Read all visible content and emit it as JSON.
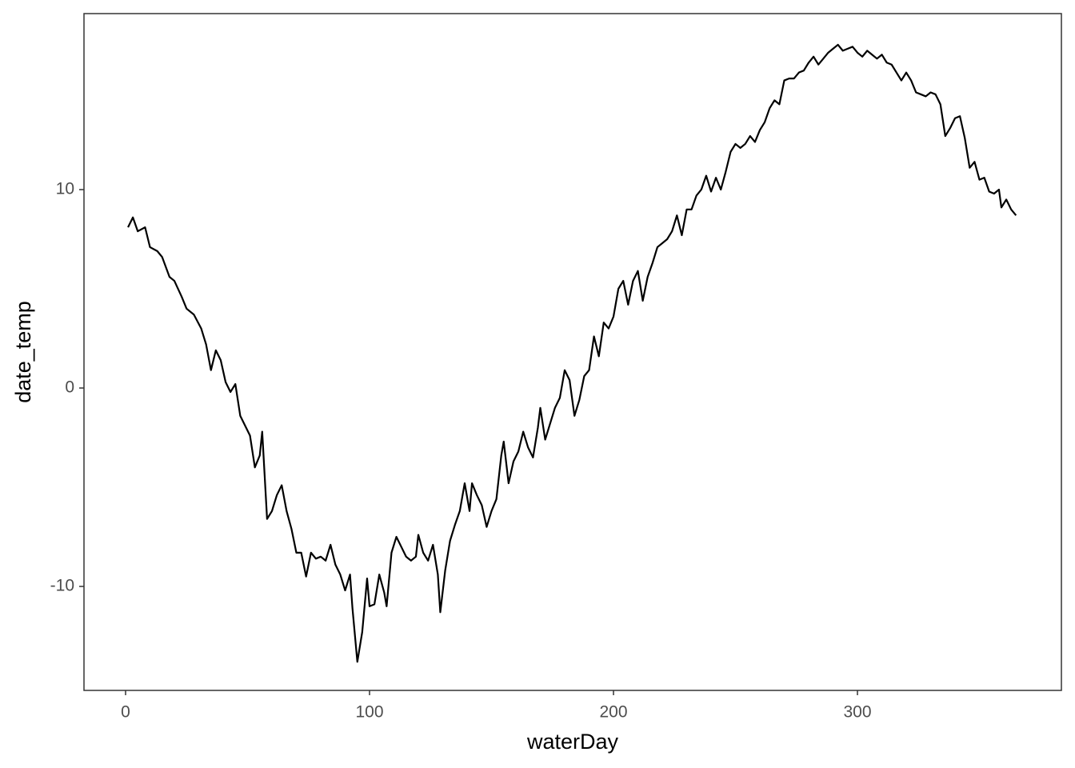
{
  "chart_data": {
    "type": "line",
    "x_label": "waterDay",
    "y_label": "date_temp",
    "x": [
      1,
      3,
      5,
      8,
      10,
      13,
      15,
      18,
      20,
      23,
      25,
      28,
      31,
      33,
      35,
      37,
      39,
      41,
      43,
      45,
      47,
      49,
      51,
      53,
      55,
      56,
      58,
      60,
      62,
      64,
      66,
      68,
      70,
      72,
      74,
      76,
      78,
      80,
      82,
      84,
      86,
      88,
      90,
      92,
      93,
      95,
      97,
      99,
      100,
      102,
      104,
      106,
      107,
      109,
      111,
      113,
      115,
      117,
      119,
      120,
      122,
      124,
      126,
      128,
      129,
      131,
      133,
      135,
      137,
      139,
      141,
      142,
      144,
      146,
      148,
      150,
      152,
      154,
      155,
      157,
      159,
      161,
      163,
      165,
      167,
      169,
      170,
      172,
      174,
      176,
      178,
      180,
      182,
      184,
      186,
      188,
      190,
      192,
      194,
      196,
      198,
      200,
      202,
      204,
      206,
      208,
      210,
      212,
      214,
      216,
      218,
      220,
      222,
      224,
      226,
      228,
      230,
      232,
      234,
      236,
      238,
      240,
      242,
      244,
      246,
      248,
      250,
      252,
      254,
      256,
      258,
      260,
      262,
      264,
      266,
      268,
      270,
      272,
      274,
      276,
      278,
      280,
      282,
      284,
      286,
      288,
      290,
      292,
      294,
      296,
      298,
      300,
      302,
      304,
      306,
      308,
      310,
      312,
      314,
      316,
      318,
      320,
      322,
      324,
      326,
      328,
      330,
      332,
      334,
      336,
      338,
      340,
      342,
      344,
      346,
      348,
      350,
      352,
      354,
      356,
      358,
      359,
      361,
      363,
      365
    ],
    "series": [
      {
        "color": "#000000",
        "values": [
          8.1,
          8.6,
          7.9,
          8.1,
          7.1,
          6.9,
          6.6,
          5.6,
          5.4,
          4.6,
          4.0,
          3.7,
          3.0,
          2.2,
          0.9,
          1.9,
          1.4,
          0.3,
          -0.2,
          0.2,
          -1.4,
          -1.9,
          -2.4,
          -4.0,
          -3.4,
          -2.2,
          -6.6,
          -6.2,
          -5.4,
          -4.9,
          -6.2,
          -7.1,
          -8.3,
          -8.3,
          -9.5,
          -8.3,
          -8.6,
          -8.5,
          -8.7,
          -7.9,
          -8.9,
          -9.4,
          -10.2,
          -9.4,
          -11.1,
          -13.8,
          -12.3,
          -9.6,
          -11.0,
          -10.9,
          -9.4,
          -10.3,
          -11.0,
          -8.3,
          -7.5,
          -8.0,
          -8.5,
          -8.7,
          -8.5,
          -7.4,
          -8.3,
          -8.7,
          -7.9,
          -9.4,
          -11.3,
          -9.2,
          -7.7,
          -6.9,
          -6.2,
          -4.8,
          -6.2,
          -4.8,
          -5.4,
          -5.9,
          -7.0,
          -6.2,
          -5.6,
          -3.4,
          -2.7,
          -4.8,
          -3.7,
          -3.2,
          -2.2,
          -3.0,
          -3.5,
          -2.0,
          -1.0,
          -2.6,
          -1.8,
          -1.0,
          -0.5,
          0.9,
          0.4,
          -1.4,
          -0.6,
          0.6,
          0.9,
          2.6,
          1.6,
          3.3,
          3.0,
          3.6,
          5.0,
          5.4,
          4.2,
          5.4,
          5.9,
          4.4,
          5.6,
          6.3,
          7.1,
          7.3,
          7.5,
          7.9,
          8.7,
          7.7,
          9.0,
          9.0,
          9.7,
          10.0,
          10.7,
          9.9,
          10.6,
          10.0,
          10.9,
          11.9,
          12.3,
          12.1,
          12.3,
          12.7,
          12.4,
          13.0,
          13.4,
          14.1,
          14.5,
          14.3,
          15.5,
          15.6,
          15.6,
          15.9,
          16.0,
          16.4,
          16.7,
          16.3,
          16.6,
          16.9,
          17.1,
          17.3,
          17.0,
          17.1,
          17.2,
          16.9,
          16.7,
          17.0,
          16.8,
          16.6,
          16.8,
          16.4,
          16.3,
          15.9,
          15.5,
          15.9,
          15.5,
          14.9,
          14.8,
          14.7,
          14.9,
          14.8,
          14.3,
          12.7,
          13.1,
          13.6,
          13.7,
          12.6,
          11.1,
          11.4,
          10.5,
          10.6,
          9.9,
          9.8,
          10.0,
          9.1,
          9.5,
          9.0,
          8.7
        ]
      }
    ],
    "xlim": [
      -17.05,
      383.6
    ],
    "ylim": [
      -15.24,
      18.87
    ],
    "xticks": [
      0,
      100,
      200,
      300
    ],
    "yticks": [
      -10,
      0,
      10
    ],
    "grid": false
  }
}
